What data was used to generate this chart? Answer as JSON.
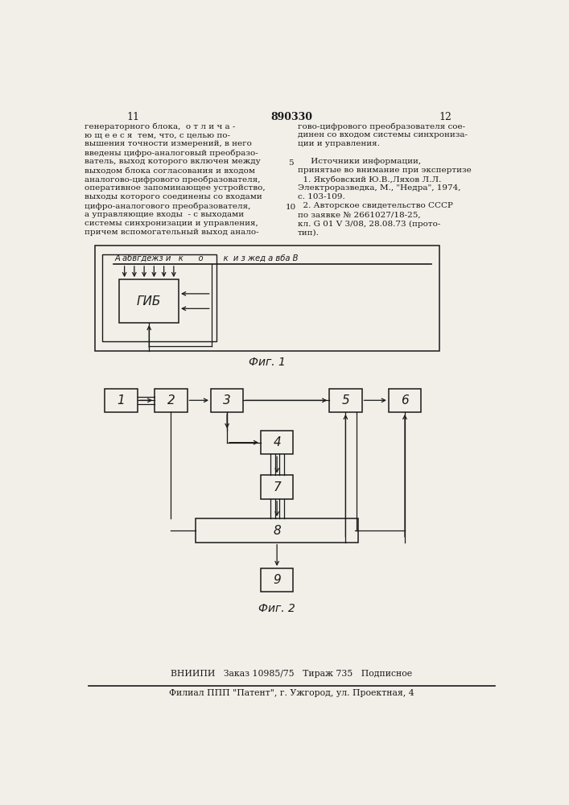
{
  "bg_color": "#f2efe9",
  "page_number_left": "11",
  "page_number_center": "890330",
  "page_number_right": "12",
  "left_text": [
    "генераторного блока,  о т л и ч а -",
    "ю щ е е с я  тем, что, с целью по-",
    "вышения точности измерений, в него",
    "введены цифро-аналоговый преобразо-",
    "ватель, выход которого включен между",
    "выходом блока согласования и входом",
    "аналогово-цифрового преобразователя,",
    "оперативное запоминающее устройство,",
    "выходы которого соединены со входами",
    "цифро-аналогового преобразователя,",
    "а управляющие входы  - с выходами",
    "системы синхронизации и управления,",
    "причем вспомогательный выход анало-"
  ],
  "right_text": [
    "гово-цифрового преобразователя сое-",
    "динен со входом системы синхрониза-",
    "ции и управления.",
    "",
    "     Источники информации,",
    "принятые во внимание при экспертизе",
    "  1. Якубовский Ю.В.,Ляхов Л.Л.",
    "Электроразведка, М., \"Недра\", 1974,",
    "с. 103-109.",
    "  2. Авторское свидетельство СССР",
    "по заявке № 2661027/18-25,",
    "кл. G 01 V 3/08, 28.08.73 (прото-",
    "тип)."
  ],
  "line_number_5": "5",
  "line_number_10": "10",
  "fig1_caption": "Фиг. 1",
  "fig2_caption": "Фиг. 2",
  "bottom_line1": "ВНИИПИ   Заказ 10985/75   Тираж 735   Подписное",
  "bottom_line2": "Филиал ППП \"Патент\", г. Ужгород, ул. Проектная, 4",
  "fig1_electrode_label": "А абвгдежз и   к      о        к  и з жед а вба В",
  "gib_label": "ГИБ"
}
